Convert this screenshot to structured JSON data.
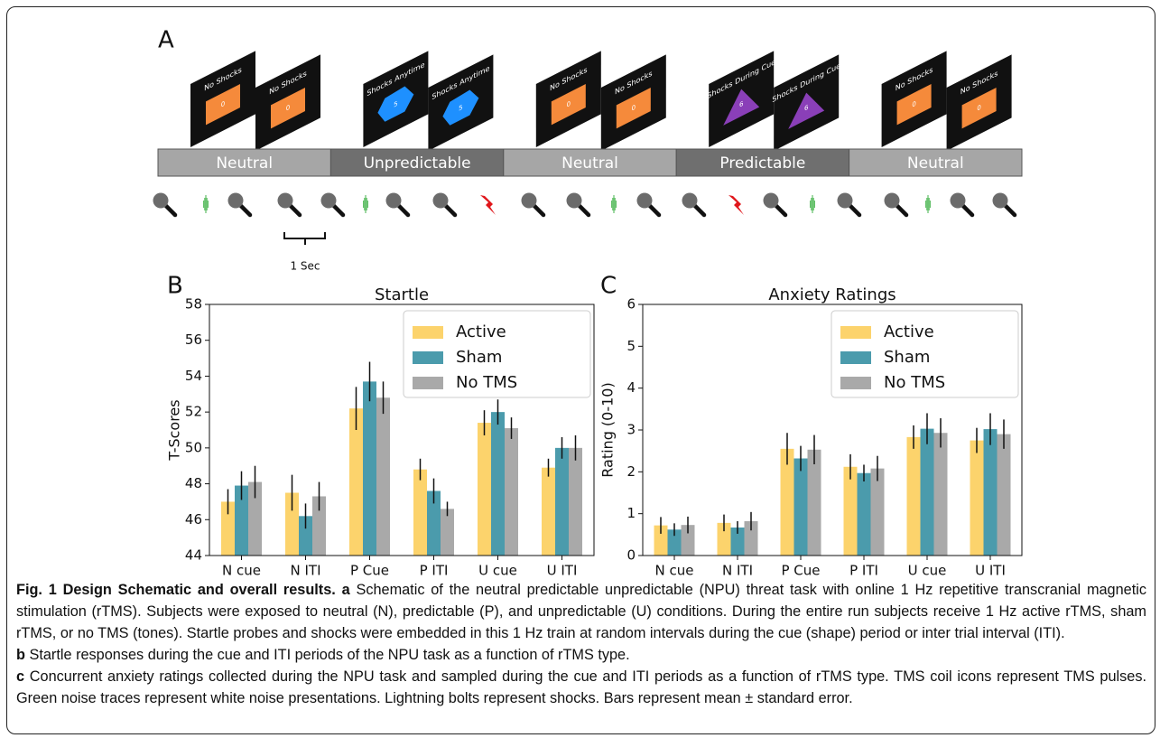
{
  "panel_a": {
    "label": "A",
    "blocks": [
      {
        "label": "Neutral",
        "screens": [
          {
            "cue": "No Shocks",
            "number": "0"
          },
          {
            "cue": "No Shocks",
            "number": "0"
          }
        ]
      },
      {
        "label": "Unpredictable",
        "screens": [
          {
            "cue": "Shocks Anytime",
            "number": "5"
          },
          {
            "cue": "Shocks Anytime",
            "number": "5"
          }
        ]
      },
      {
        "label": "Neutral",
        "screens": [
          {
            "cue": "No Shocks",
            "number": "0"
          },
          {
            "cue": "No Shocks",
            "number": "0"
          }
        ]
      },
      {
        "label": "Predictable",
        "screens": [
          {
            "cue": "Shocks During Cue",
            "number": "6"
          },
          {
            "cue": "Shocks During Cue",
            "number": "6"
          }
        ]
      },
      {
        "label": "Neutral",
        "screens": [
          {
            "cue": "No Shocks",
            "number": "0"
          },
          {
            "cue": "No Shocks",
            "number": "0"
          }
        ]
      }
    ],
    "scale_label": "1 Sec"
  },
  "chart_data": [
    {
      "type": "bar",
      "panel": "B",
      "title": "Startle",
      "y_label": "T-Scores",
      "categories": [
        "N cue",
        "N ITI",
        "P Cue",
        "P ITI",
        "U cue",
        "U ITI"
      ],
      "series": [
        {
          "name": "Active",
          "color": "#fcd36c",
          "values": [
            47.0,
            47.5,
            52.2,
            48.8,
            51.4,
            48.9
          ],
          "errors": [
            0.7,
            1.0,
            1.2,
            0.6,
            0.7,
            0.5
          ]
        },
        {
          "name": "Sham",
          "color": "#4b9bac",
          "values": [
            47.9,
            46.2,
            53.7,
            47.6,
            52.0,
            50.0
          ],
          "errors": [
            0.8,
            0.7,
            1.1,
            0.7,
            0.7,
            0.6
          ]
        },
        {
          "name": "No TMS",
          "color": "#a9a9a9",
          "values": [
            48.1,
            47.3,
            52.8,
            46.6,
            51.1,
            50.0
          ],
          "errors": [
            0.9,
            0.8,
            0.9,
            0.4,
            0.6,
            0.7
          ]
        }
      ],
      "ylim": [
        44,
        58
      ],
      "yticks": [
        44,
        46,
        48,
        50,
        52,
        54,
        56,
        58
      ],
      "legend": "upper right"
    },
    {
      "type": "bar",
      "panel": "C",
      "title": "Anxiety Ratings",
      "y_label": "Rating (0-10)",
      "categories": [
        "N cue",
        "N ITI",
        "P Cue",
        "P ITI",
        "U cue",
        "U ITI"
      ],
      "series": [
        {
          "name": "Active",
          "color": "#fcd36c",
          "values": [
            0.72,
            0.78,
            2.55,
            2.12,
            2.83,
            2.75
          ],
          "errors": [
            0.2,
            0.2,
            0.38,
            0.3,
            0.28,
            0.3
          ]
        },
        {
          "name": "Sham",
          "color": "#4b9bac",
          "values": [
            0.62,
            0.67,
            2.32,
            1.97,
            3.03,
            3.02
          ],
          "errors": [
            0.15,
            0.15,
            0.3,
            0.2,
            0.37,
            0.38
          ]
        },
        {
          "name": "No TMS",
          "color": "#a9a9a9",
          "values": [
            0.73,
            0.82,
            2.53,
            2.08,
            2.93,
            2.9
          ],
          "errors": [
            0.2,
            0.22,
            0.35,
            0.3,
            0.35,
            0.35
          ]
        }
      ],
      "ylim": [
        0,
        6
      ],
      "yticks": [
        0,
        1,
        2,
        3,
        4,
        5,
        6
      ],
      "legend": "upper right"
    }
  ],
  "caption": {
    "title": "Fig. 1 Design Schematic and overall results.",
    "parts": [
      {
        "label": "a",
        "text": "Schematic of the neutral predictable unpredictable (NPU) threat task with online 1 Hz repetitive transcranial magnetic stimulation (rTMS). Subjects were exposed to neutral (N), predictable (P), and unpredictable (U) conditions. During the entire run subjects receive 1 Hz active rTMS, sham rTMS, or no TMS (tones). Startle probes and shocks were embedded in this 1 Hz train at random intervals during the cue (shape) period or inter trial interval (ITI)."
      },
      {
        "label": "b",
        "text": "Startle responses during the cue and ITI periods of the NPU task as a function of rTMS type."
      },
      {
        "label": "c",
        "text": "Concurrent anxiety ratings collected during the NPU task and sampled during the cue and ITI periods as a function of rTMS type. TMS coil icons represent TMS pulses. Green noise traces represent white noise presentations. Lightning bolts represent shocks. Bars represent mean ± standard error."
      }
    ]
  }
}
